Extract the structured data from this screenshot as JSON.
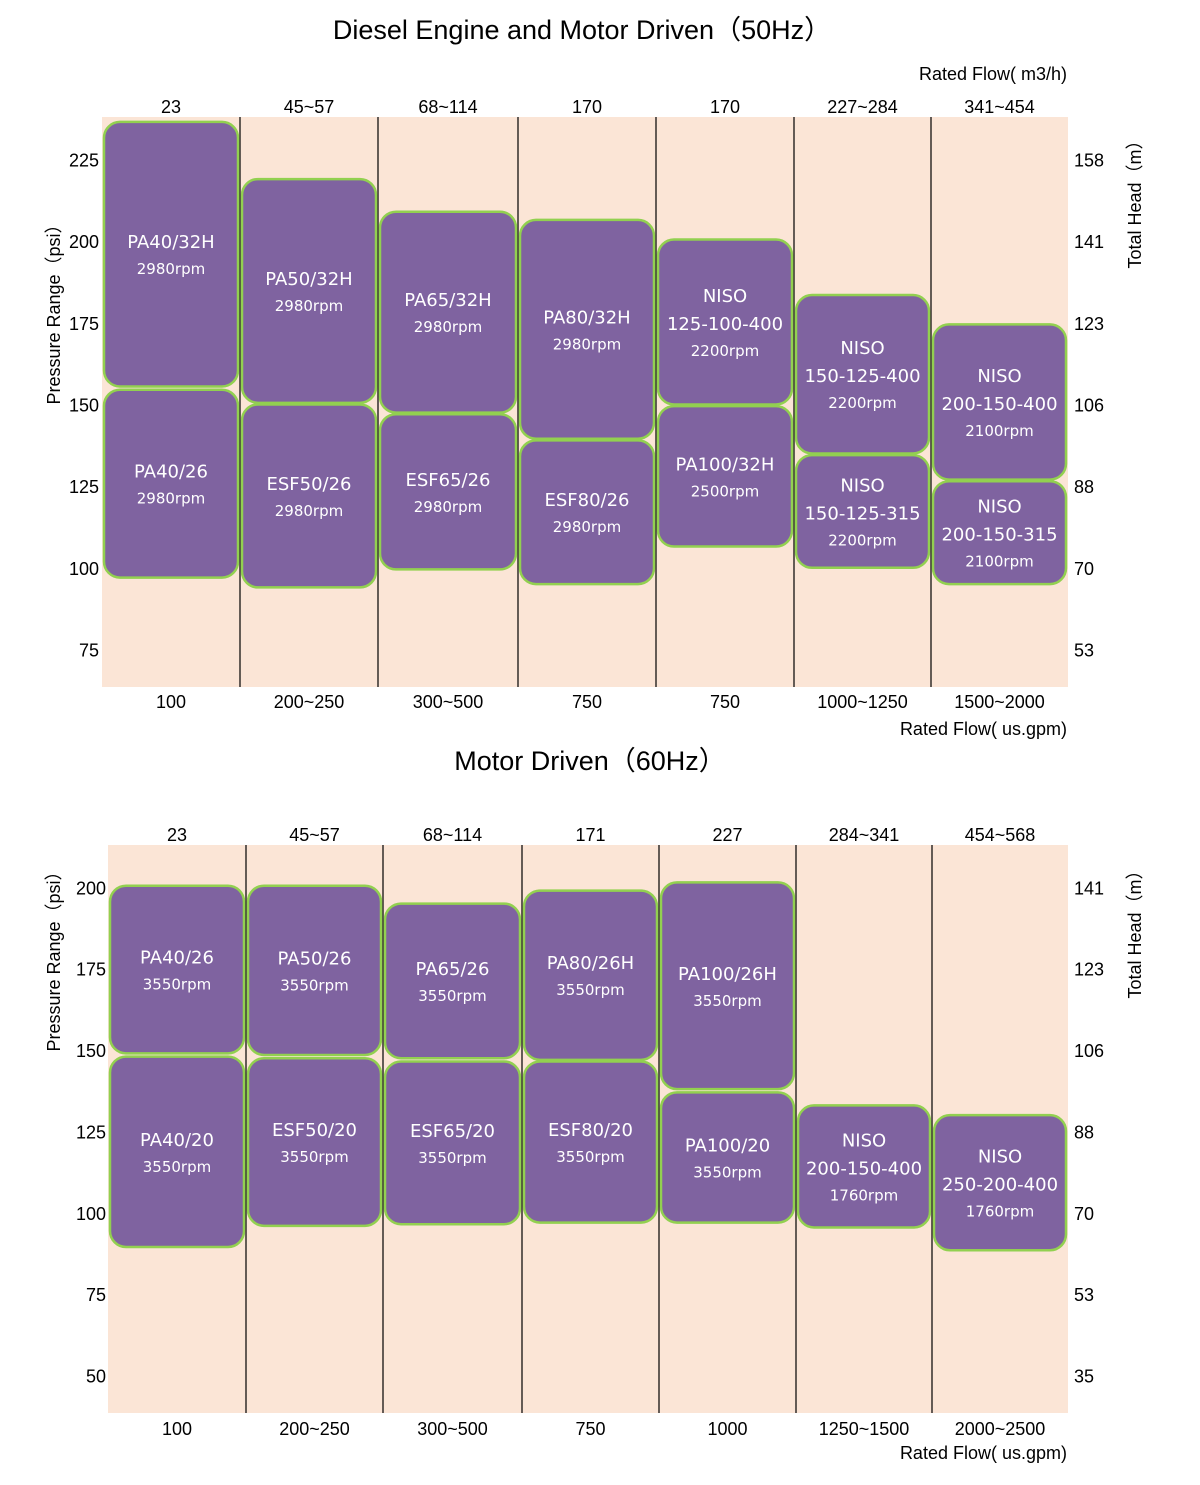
{
  "colors": {
    "background": "#fbe5d6",
    "block_fill": "#7f63a0",
    "block_border": "#92d050",
    "grid": "#000000",
    "block_text": "#ffffff"
  },
  "chart_data": [
    {
      "type": "range-blocks",
      "title": "Diesel Engine and Motor Driven（50Hz）",
      "top_axis_label": "Rated Flow( m3/h)",
      "bottom_axis_label": "Rated Flow( us.gpm)",
      "ylabel": "Pressure Range（psi）",
      "y2label": "Total Head（m）",
      "ylim": [
        63.5,
        238
      ],
      "yticks": [
        225,
        200,
        175,
        150,
        125,
        100,
        75
      ],
      "y2ticks": [
        "158",
        "141",
        "123",
        "106",
        "88",
        "70",
        "53"
      ],
      "categories_top": [
        "23",
        "45~57",
        "68~114",
        "170",
        "170",
        "227~284",
        "341~454"
      ],
      "categories_bottom": [
        "100",
        "200~250",
        "300~500",
        "750",
        "750",
        "1000~1250",
        "1500~2000"
      ],
      "blocks": [
        {
          "col": 0,
          "model": "PA40/32H",
          "rpm": "2980rpm",
          "psi": [
            155.5,
            236.5
          ]
        },
        {
          "col": 0,
          "model": "PA40/26",
          "rpm": "2980rpm",
          "psi": [
            97,
            154.5
          ]
        },
        {
          "col": 1,
          "model": "PA50/32H",
          "rpm": "2980rpm",
          "psi": [
            150.5,
            219
          ]
        },
        {
          "col": 1,
          "model": "ESF50/26",
          "rpm": "2980rpm",
          "psi": [
            94,
            150
          ]
        },
        {
          "col": 2,
          "model": "PA65/32H",
          "rpm": "2980rpm",
          "psi": [
            147.5,
            209
          ]
        },
        {
          "col": 2,
          "model": "ESF65/26",
          "rpm": "2980rpm",
          "psi": [
            99.5,
            147
          ]
        },
        {
          "col": 3,
          "model": "PA80/32H",
          "rpm": "2980rpm",
          "psi": [
            139.5,
            206.5
          ]
        },
        {
          "col": 3,
          "model": "ESF80/26",
          "rpm": "2980rpm",
          "psi": [
            95,
            139
          ]
        },
        {
          "col": 4,
          "model": "NISO 125-100-400",
          "rpm": "2200rpm",
          "psi": [
            150,
            200.5
          ]
        },
        {
          "col": 4,
          "model": "PA100/32H",
          "rpm": "2500rpm",
          "psi": [
            106.5,
            149.5
          ]
        },
        {
          "col": 5,
          "model": "NISO 150-125-400",
          "rpm": "2200rpm",
          "psi": [
            135,
            183.5
          ]
        },
        {
          "col": 5,
          "model": "NISO 150-125-315",
          "rpm": "2200rpm",
          "psi": [
            100,
            134.5
          ]
        },
        {
          "col": 6,
          "model": "NISO 200-150-400",
          "rpm": "2100rpm",
          "psi": [
            127,
            174.5
          ]
        },
        {
          "col": 6,
          "model": "NISO 200-150-315",
          "rpm": "2100rpm",
          "psi": [
            95,
            126.5
          ]
        }
      ]
    },
    {
      "type": "range-blocks",
      "title": "Motor Driven（60Hz）",
      "top_axis_label": "",
      "bottom_axis_label": "Rated Flow( us.gpm)",
      "ylabel": "Pressure Range（psi）",
      "y2label": "Total Head（m）",
      "ylim": [
        38.5,
        213
      ],
      "yticks": [
        200,
        175,
        150,
        125,
        100,
        75,
        50
      ],
      "y2ticks": [
        "141",
        "123",
        "106",
        "88",
        "70",
        "53",
        "35"
      ],
      "categories_top": [
        "23",
        "45~57",
        "68~114",
        "171",
        "227",
        "284~341",
        "454~568"
      ],
      "categories_bottom": [
        "100",
        "200~250",
        "300~500",
        "750",
        "1000",
        "1250~1500",
        "2000~2500"
      ],
      "blocks": [
        {
          "col": 0,
          "model": "PA40/26",
          "rpm": "3550rpm",
          "psi": [
            149,
            200.5
          ]
        },
        {
          "col": 0,
          "model": "PA40/20",
          "rpm": "3550rpm",
          "psi": [
            89.5,
            148
          ]
        },
        {
          "col": 1,
          "model": "PA50/26",
          "rpm": "3550rpm",
          "psi": [
            148.5,
            200.5
          ]
        },
        {
          "col": 1,
          "model": "ESF50/20",
          "rpm": "3550rpm",
          "psi": [
            96,
            147.5
          ]
        },
        {
          "col": 2,
          "model": "PA65/26",
          "rpm": "3550rpm",
          "psi": [
            147.5,
            195
          ]
        },
        {
          "col": 2,
          "model": "ESF65/20",
          "rpm": "3550rpm",
          "psi": [
            96.5,
            146.5
          ]
        },
        {
          "col": 3,
          "model": "PA80/26H",
          "rpm": "3550rpm",
          "psi": [
            147,
            199
          ]
        },
        {
          "col": 3,
          "model": "ESF80/20",
          "rpm": "3550rpm",
          "psi": [
            97,
            146.5
          ]
        },
        {
          "col": 4,
          "model": "PA100/26H",
          "rpm": "3550rpm",
          "psi": [
            138,
            201.5
          ]
        },
        {
          "col": 4,
          "model": "PA100/20",
          "rpm": "3550rpm",
          "psi": [
            97,
            137
          ]
        },
        {
          "col": 5,
          "model": "NISO 200-150-400",
          "rpm": "1760rpm",
          "psi": [
            95.5,
            133
          ]
        },
        {
          "col": 6,
          "model": "NISO 250-200-400",
          "rpm": "1760rpm",
          "psi": [
            88.5,
            130
          ]
        }
      ]
    }
  ]
}
